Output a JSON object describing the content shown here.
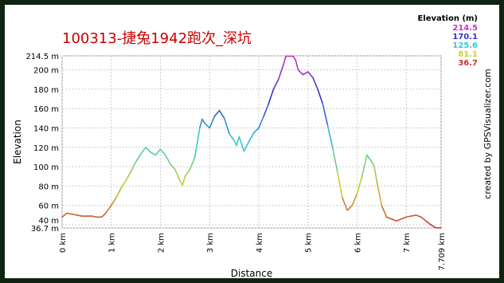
{
  "chart_data": {
    "type": "line",
    "title": "100313-捷兔1942跑次_深坑",
    "xlabel": "Distance",
    "ylabel": "Elevation",
    "credit": "created by GPSVisualizer.com",
    "legend": {
      "title": "Elevation (m)",
      "placement": "top-right",
      "entries": [
        {
          "label": "214.5",
          "color": "#cc33cc"
        },
        {
          "label": "170.1",
          "color": "#3333cc"
        },
        {
          "label": "125.6",
          "color": "#33cccc"
        },
        {
          "label": "81.1",
          "color": "#cccc33"
        },
        {
          "label": "36.7",
          "color": "#cc3333"
        }
      ]
    },
    "xlim": [
      0,
      7.709
    ],
    "ylim": [
      36.7,
      214.5
    ],
    "x_ticks": [
      {
        "value": 0,
        "label": "0 km"
      },
      {
        "value": 1,
        "label": "1 km"
      },
      {
        "value": 2,
        "label": "2 km"
      },
      {
        "value": 3,
        "label": "3 km"
      },
      {
        "value": 4,
        "label": "4 km"
      },
      {
        "value": 5,
        "label": "5 km"
      },
      {
        "value": 6,
        "label": "6 km"
      },
      {
        "value": 7,
        "label": "7 km"
      },
      {
        "value": 7.709,
        "label": "7.709 km"
      }
    ],
    "y_ticks": [
      {
        "value": 36.7,
        "label": "36.7 m"
      },
      {
        "value": 40,
        "label": "40 m"
      },
      {
        "value": 60,
        "label": "60 m"
      },
      {
        "value": 80,
        "label": "80 m"
      },
      {
        "value": 100,
        "label": "100 m"
      },
      {
        "value": 120,
        "label": "120 m"
      },
      {
        "value": 140,
        "label": "140 m"
      },
      {
        "value": 160,
        "label": "160 m"
      },
      {
        "value": 180,
        "label": "180 m"
      },
      {
        "value": 200,
        "label": "200 m"
      },
      {
        "value": 214.5,
        "label": "214.5 m"
      }
    ],
    "grid": true,
    "series": [
      {
        "color_scale": [
          "#cc3333",
          "#cccc33",
          "#33cccc",
          "#3333cc",
          "#cc33cc"
        ],
        "x": [
          0,
          0.05,
          0.1,
          0.2,
          0.3,
          0.4,
          0.5,
          0.6,
          0.7,
          0.8,
          0.85,
          0.9,
          1.0,
          1.05,
          1.1,
          1.2,
          1.3,
          1.4,
          1.5,
          1.6,
          1.7,
          1.8,
          1.9,
          2.0,
          2.1,
          2.2,
          2.3,
          2.4,
          2.45,
          2.5,
          2.6,
          2.7,
          2.8,
          2.85,
          2.9,
          3.0,
          3.1,
          3.2,
          3.3,
          3.4,
          3.5,
          3.55,
          3.6,
          3.7,
          3.75,
          3.8,
          3.9,
          4.0,
          4.1,
          4.2,
          4.3,
          4.4,
          4.5,
          4.55,
          4.6,
          4.7,
          4.75,
          4.8,
          4.9,
          5.0,
          5.1,
          5.2,
          5.3,
          5.4,
          5.5,
          5.6,
          5.7,
          5.8,
          5.9,
          6.0,
          6.1,
          6.2,
          6.3,
          6.35,
          6.4,
          6.5,
          6.6,
          6.7,
          6.8,
          6.9,
          7.0,
          7.1,
          7.2,
          7.3,
          7.4,
          7.5,
          7.6,
          7.709
        ],
        "y": [
          48,
          50,
          52,
          51,
          50,
          49,
          49,
          49,
          48,
          48,
          50,
          53,
          60,
          64,
          68,
          78,
          86,
          95,
          105,
          113,
          120,
          115,
          112,
          118,
          112,
          103,
          97,
          85,
          81,
          90,
          97,
          110,
          140,
          149,
          145,
          140,
          152,
          158,
          150,
          134,
          127,
          122,
          131,
          116,
          121,
          126,
          135,
          140,
          152,
          165,
          180,
          190,
          205,
          214,
          214,
          214,
          210,
          200,
          195,
          198,
          192,
          180,
          165,
          143,
          120,
          95,
          68,
          55,
          60,
          72,
          90,
          112,
          105,
          100,
          85,
          60,
          48,
          46,
          44,
          46,
          48,
          49,
          50,
          48,
          44,
          40,
          37,
          36.7
        ]
      }
    ]
  }
}
